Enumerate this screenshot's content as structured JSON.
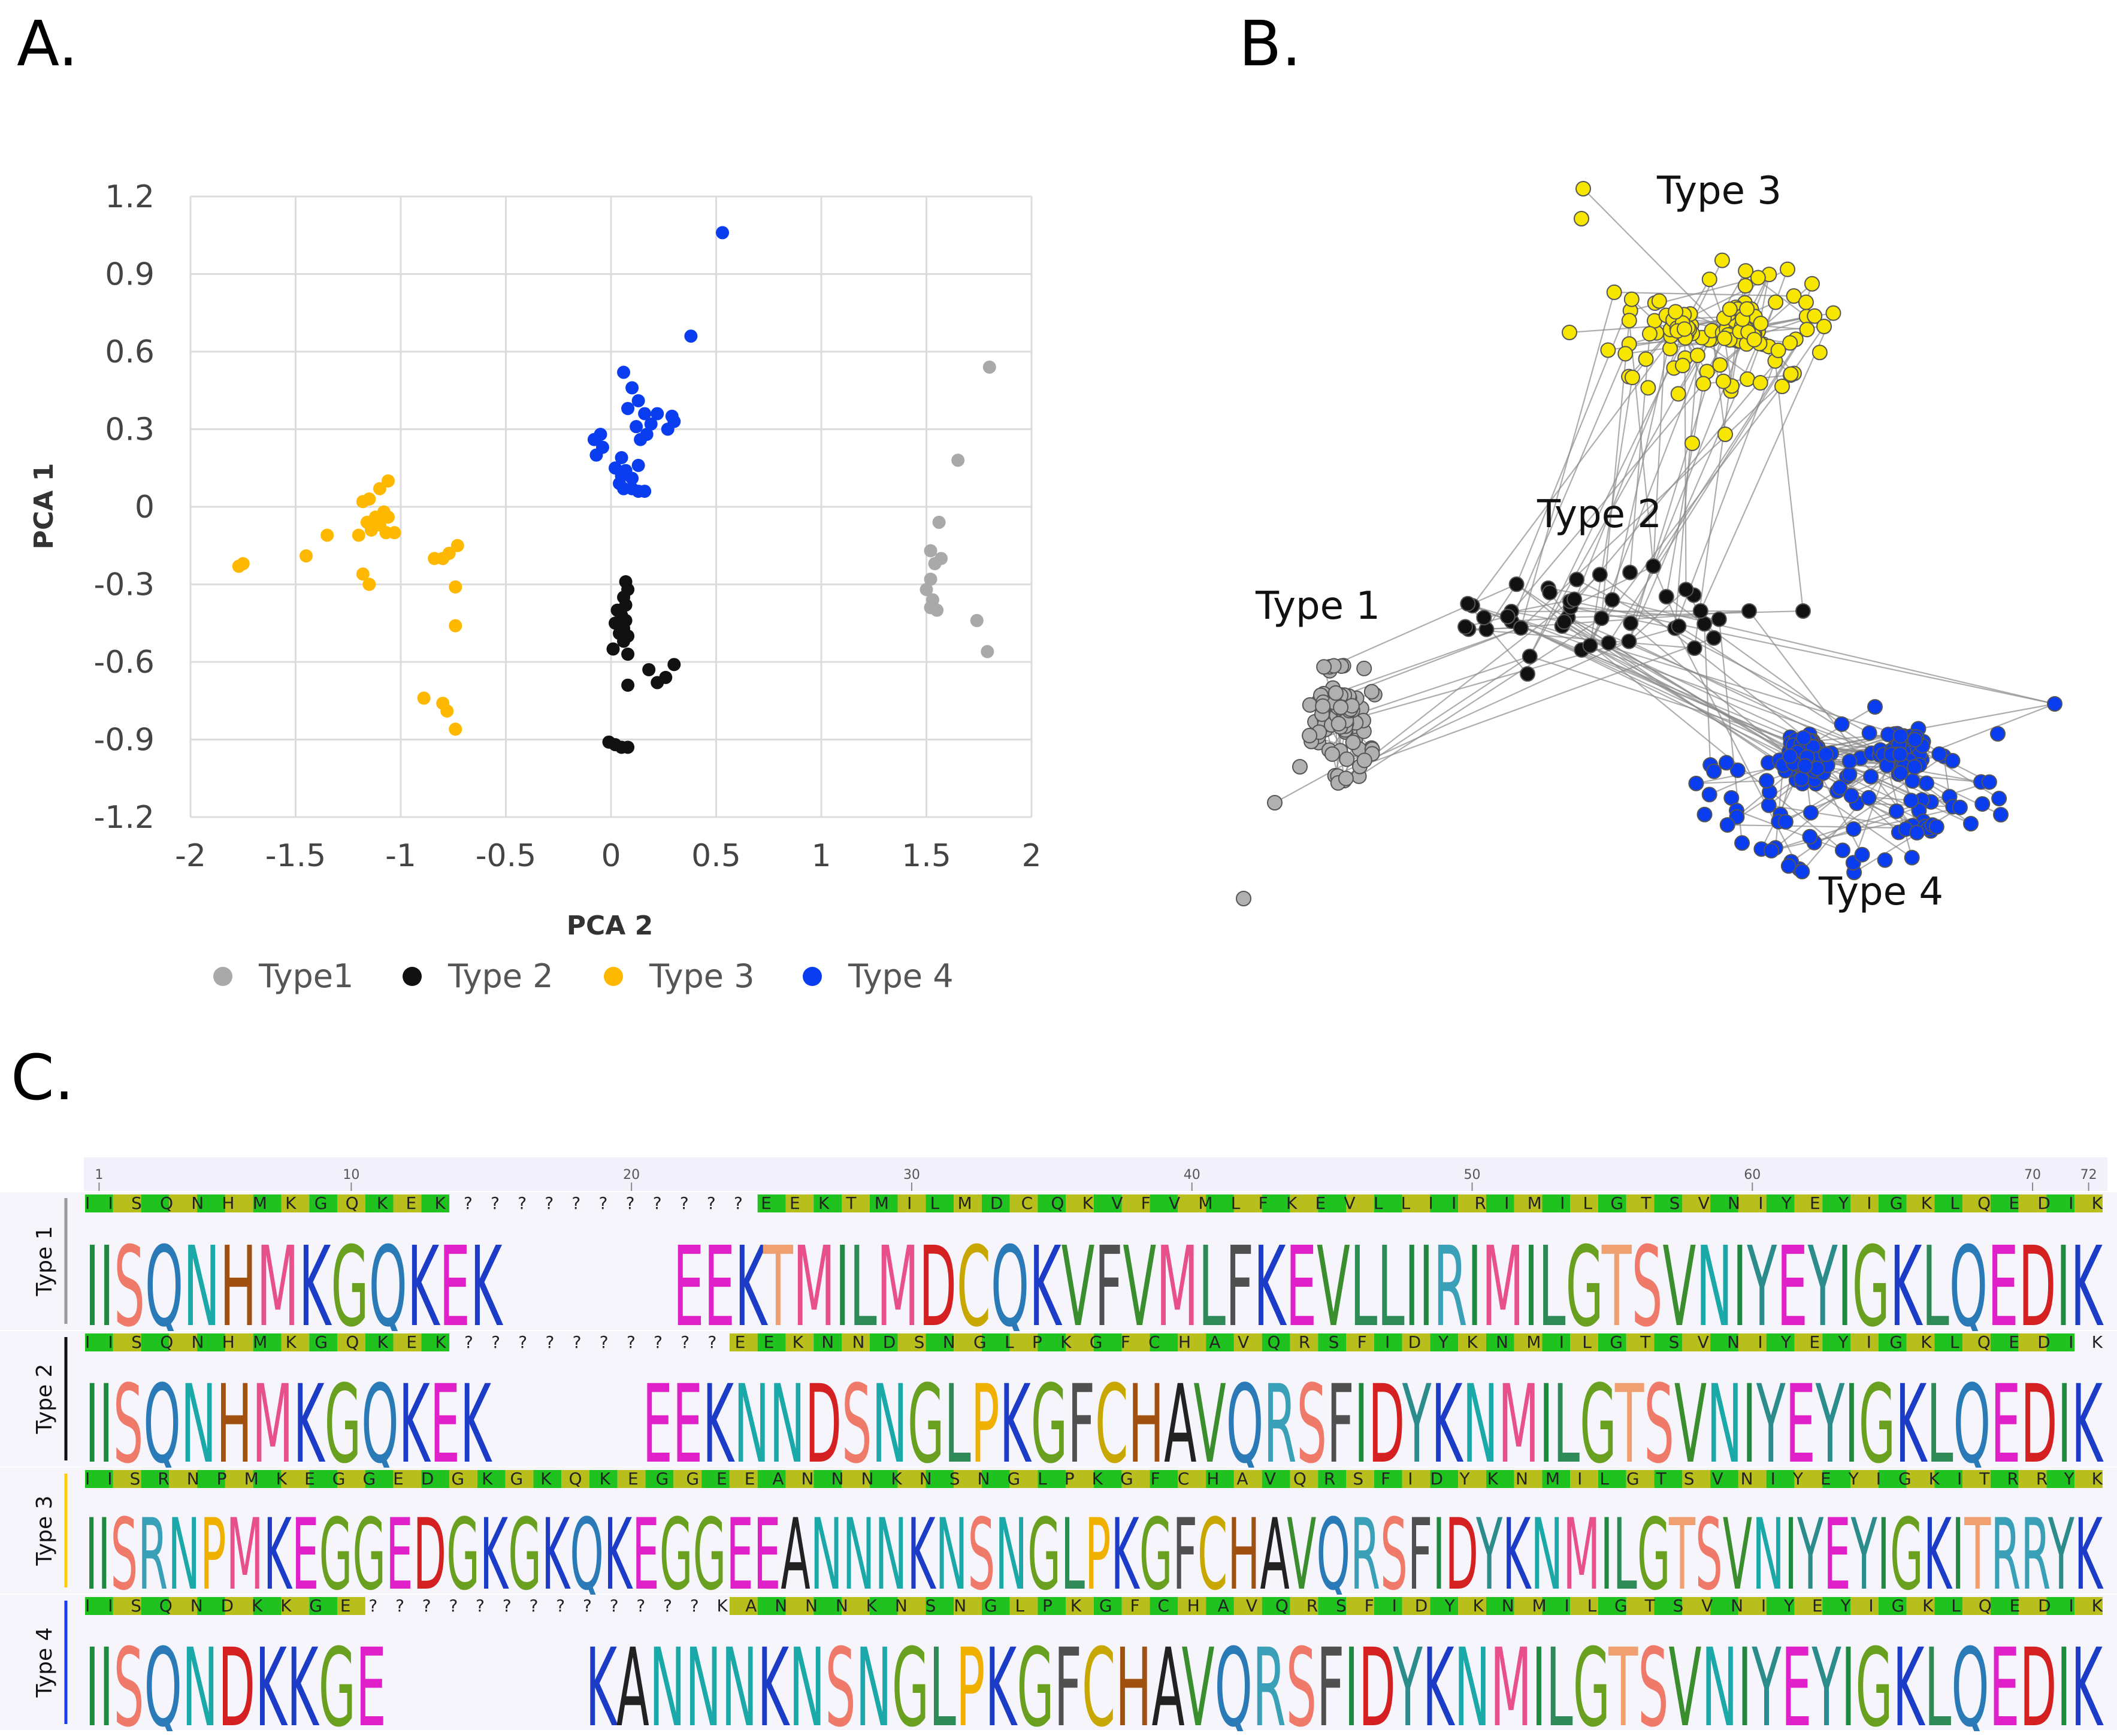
{
  "panels": {
    "a_label": "A.",
    "b_label": "B.",
    "c_label": "C."
  },
  "colors": {
    "type1": "#a9a9a9",
    "type2": "#111111",
    "type3": "#ffb800",
    "type4": "#0a3cf0",
    "type3_net": "#f7e600",
    "consensus_green": "#22c422",
    "consensus_olive": "#b9bf1f",
    "ruler_bg": "#f1f0fb"
  },
  "chart_data": [
    {
      "type": "scatter",
      "title": "",
      "xlabel": "PCA 2",
      "ylabel": "PCA 1",
      "xlim": [
        -2,
        2
      ],
      "ylim": [
        -1.2,
        1.2
      ],
      "xticks": [
        "-2",
        "-1.5",
        "-1",
        "-0.5",
        "0",
        "0.5",
        "1",
        "1.5",
        "2"
      ],
      "yticks": [
        "1.2",
        "0.9",
        "0.6",
        "0.3",
        "0",
        "-0.3",
        "-0.6",
        "-0.9",
        "-1.2"
      ],
      "grid": true,
      "legend_position": "bottom",
      "series": [
        {
          "name": "Type1",
          "color": "#a9a9a9",
          "points": [
            [
              1.8,
              0.54
            ],
            [
              1.65,
              0.18
            ],
            [
              1.56,
              -0.06
            ],
            [
              1.52,
              -0.17
            ],
            [
              1.57,
              -0.2
            ],
            [
              1.54,
              -0.22
            ],
            [
              1.52,
              -0.28
            ],
            [
              1.5,
              -0.32
            ],
            [
              1.53,
              -0.36
            ],
            [
              1.52,
              -0.39
            ],
            [
              1.55,
              -0.4
            ],
            [
              1.74,
              -0.44
            ],
            [
              1.79,
              -0.56
            ]
          ]
        },
        {
          "name": "Type 2",
          "color": "#111111",
          "points": [
            [
              0.07,
              -0.29
            ],
            [
              0.08,
              -0.32
            ],
            [
              0.06,
              -0.35
            ],
            [
              0.07,
              -0.38
            ],
            [
              0.03,
              -0.4
            ],
            [
              0.05,
              -0.42
            ],
            [
              0.07,
              -0.44
            ],
            [
              0.02,
              -0.45
            ],
            [
              0.06,
              -0.47
            ],
            [
              0.04,
              -0.49
            ],
            [
              0.08,
              -0.5
            ],
            [
              0.06,
              -0.52
            ],
            [
              0.01,
              -0.55
            ],
            [
              0.08,
              -0.57
            ],
            [
              0.3,
              -0.61
            ],
            [
              0.18,
              -0.63
            ],
            [
              0.26,
              -0.66
            ],
            [
              0.22,
              -0.68
            ],
            [
              0.08,
              -0.69
            ],
            [
              -0.01,
              -0.91
            ],
            [
              0.02,
              -0.92
            ],
            [
              0.05,
              -0.93
            ],
            [
              0.08,
              -0.93
            ]
          ]
        },
        {
          "name": "Type 3",
          "color": "#ffb800",
          "points": [
            [
              -1.06,
              0.1
            ],
            [
              -1.1,
              0.07
            ],
            [
              -1.15,
              0.03
            ],
            [
              -1.18,
              0.02
            ],
            [
              -1.08,
              -0.02
            ],
            [
              -1.12,
              -0.04
            ],
            [
              -1.06,
              -0.04
            ],
            [
              -1.16,
              -0.06
            ],
            [
              -1.1,
              -0.07
            ],
            [
              -1.14,
              -0.09
            ],
            [
              -1.07,
              -0.1
            ],
            [
              -1.2,
              -0.11
            ],
            [
              -1.03,
              -0.1
            ],
            [
              -1.35,
              -0.11
            ],
            [
              -0.73,
              -0.15
            ],
            [
              -0.77,
              -0.18
            ],
            [
              -0.8,
              -0.2
            ],
            [
              -0.84,
              -0.2
            ],
            [
              -1.45,
              -0.19
            ],
            [
              -1.75,
              -0.22
            ],
            [
              -1.77,
              -0.23
            ],
            [
              -1.18,
              -0.26
            ],
            [
              -1.15,
              -0.3
            ],
            [
              -0.74,
              -0.31
            ],
            [
              -0.74,
              -0.46
            ],
            [
              -0.89,
              -0.74
            ],
            [
              -0.8,
              -0.76
            ],
            [
              -0.78,
              -0.79
            ],
            [
              -0.74,
              -0.86
            ]
          ]
        },
        {
          "name": "Type 4",
          "color": "#0a3cf0",
          "points": [
            [
              0.53,
              1.06
            ],
            [
              0.38,
              0.66
            ],
            [
              0.06,
              0.52
            ],
            [
              0.1,
              0.46
            ],
            [
              0.13,
              0.41
            ],
            [
              0.08,
              0.38
            ],
            [
              0.16,
              0.36
            ],
            [
              0.22,
              0.36
            ],
            [
              0.29,
              0.35
            ],
            [
              0.3,
              0.33
            ],
            [
              0.19,
              0.32
            ],
            [
              0.12,
              0.31
            ],
            [
              0.27,
              0.3
            ],
            [
              0.17,
              0.28
            ],
            [
              -0.05,
              0.28
            ],
            [
              -0.08,
              0.26
            ],
            [
              -0.04,
              0.23
            ],
            [
              0.14,
              0.26
            ],
            [
              -0.07,
              0.2
            ],
            [
              0.05,
              0.19
            ],
            [
              0.02,
              0.15
            ],
            [
              0.13,
              0.16
            ],
            [
              0.07,
              0.14
            ],
            [
              0.05,
              0.12
            ],
            [
              0.1,
              0.11
            ],
            [
              0.04,
              0.09
            ],
            [
              0.06,
              0.07
            ],
            [
              0.1,
              0.07
            ],
            [
              0.13,
              0.06
            ],
            [
              0.16,
              0.06
            ]
          ]
        }
      ]
    },
    {
      "type": "network",
      "title": "",
      "groups": [
        {
          "name": "Type 1",
          "color": "#b0b0b0"
        },
        {
          "name": "Type 2",
          "color": "#111111"
        },
        {
          "name": "Type 3",
          "color": "#f7e600"
        },
        {
          "name": "Type 4",
          "color": "#0a3cf0"
        }
      ]
    },
    {
      "type": "sequence-logo",
      "ruler_ticks": [
        "1",
        "10",
        "20",
        "30",
        "40",
        "50",
        "60",
        "70",
        "72"
      ],
      "rows": [
        {
          "label": "Type 1",
          "consensus": "IISQNHMKGQKEK???????????EEKTMILMDCQKVFVMLFKEVLLIIRIMILGTSVNIYEYIGKLQEDIK",
          "logo": "IISQNHMKGQKEK???????????EEKTMILMDCQKVFVMLFKEVLLIIRIMILGTSVNIYEYIGKLQEDIK"
        },
        {
          "label": "Type 2",
          "consensus": "IISQNHMKGQKEK??????????EEKNNDSNGLPKGFCHAVQRSFIDYKNMILGTSVNIYEYIGKLQEDIK",
          "logo": "IISQNHMKGQKEK??????????EEKNNDSNGLPKGFCHAVQRSFIDYKNMILGTSVNIYEYIGKLQEDIK"
        },
        {
          "label": "Type 3",
          "consensus": "IISRNPMKEGGEDGKGKQKEGGEEANNNKNSNGLPKGFCHAVQRSFIDYKNMILGTSVNIYEYIGKITRRYK",
          "logo": "IISRNPMKEGGEDGKGKQKEGGEEANNNKNSNGLPKGFCHAVQRSFIDYKNMILGTSVNIYEYIGKITRRYK"
        },
        {
          "label": "Type 4",
          "consensus": "IISQNDKKGE?????????????KANNNKNSNGLPKGFCHAVQRSFIDYKNMILGTSVNIYEYIGKLQEDIK",
          "logo": "IISQNDKKGE?????????????KANNNKNSNGLPKGFCHAVQRSFIDYKNMILGTSVNIYEYIGKLQEDIK"
        }
      ]
    }
  ]
}
